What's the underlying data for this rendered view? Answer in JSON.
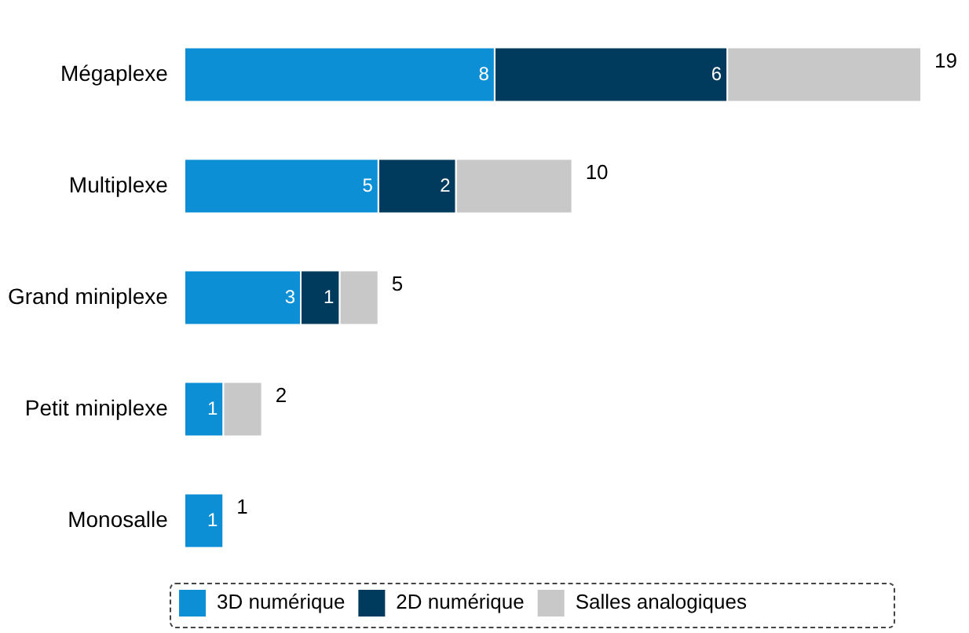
{
  "chart_data": {
    "type": "bar",
    "orientation": "horizontal",
    "stacked": true,
    "categories": [
      "Mégaplexe",
      "Multiplexe",
      "Grand miniplexe",
      "Petit miniplexe",
      "Monosalle"
    ],
    "series": [
      {
        "name": "3D numérique",
        "color": "#0d8fd6",
        "values": [
          8,
          5,
          3,
          1,
          1
        ],
        "value_labels": [
          "8",
          "5",
          "3",
          "1",
          "1"
        ]
      },
      {
        "name": "2D numérique",
        "color": "#003a5c",
        "values": [
          6,
          2,
          1,
          0,
          0
        ],
        "value_labels": [
          "6",
          "2",
          "1",
          null,
          null
        ]
      },
      {
        "name": "Salles analogiques",
        "color": "#c8c8c8",
        "values": [
          5,
          3,
          1,
          1,
          0
        ]
      }
    ],
    "totals": [
      "19",
      "10",
      "5",
      "2",
      "1"
    ],
    "legend": "bottom"
  }
}
